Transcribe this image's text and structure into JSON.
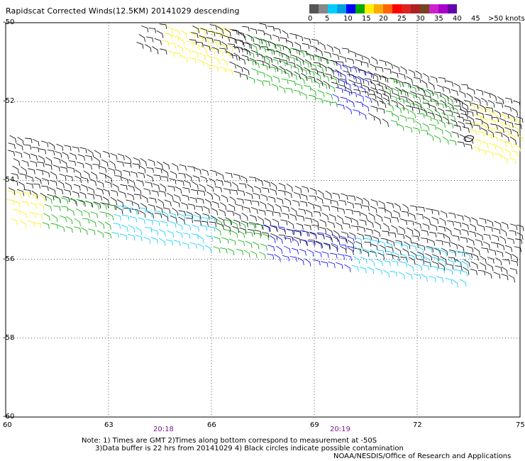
{
  "title": "Rapidscat Corrected Winds(12.5KM) 20141029 descending",
  "legend": {
    "colors": [
      "#555555",
      "#888888",
      "#00ccff",
      "#00a0e0",
      "#0000ff",
      "#00aa00",
      "#ffee00",
      "#ffaa00",
      "#ff6600",
      "#ff0000",
      "#dd2222",
      "#aa2222",
      "#774422",
      "#cc22cc",
      "#aa00cc",
      "#6600aa"
    ],
    "labels": [
      "0",
      "5",
      "10",
      "15",
      "20",
      "25",
      "30",
      "35",
      "40",
      "45",
      ">50 knots"
    ]
  },
  "axes": {
    "x_ticks": [
      "60",
      "63",
      "66",
      "69",
      "72",
      "75"
    ],
    "y_ticks": [
      "-50",
      "-52",
      "-54",
      "-56",
      "-58",
      "-60"
    ]
  },
  "times": {
    "t1": "20:18",
    "t2": "20:19"
  },
  "notes": "Note: 1) Times are GMT 2)Times along bottom correspond to measurement at -50S\n      3)Data buffer is 22 hrs from 20141029 4) Black circles indicate possible contamination",
  "credit": "NOAA/NESDIS/Office of Research and Applications",
  "map_data": {
    "lon_range": [
      60,
      75
    ],
    "lat_range": [
      -60,
      -50
    ],
    "swaths": [
      {
        "start": [
          64.0,
          -50.0
        ],
        "end": [
          75.0,
          -53.0
        ],
        "width_deg": 1.0,
        "color_zones": [
          {
            "from": 64.5,
            "to": 66.5,
            "color": "#ffee00"
          },
          {
            "from": 67,
            "to": 69.5,
            "color": "#00aa00"
          },
          {
            "from": 69,
            "to": 70.5,
            "color": "#0000ff"
          },
          {
            "from": 71,
            "to": 73,
            "color": "#00aa00"
          },
          {
            "from": 73.5,
            "to": 75,
            "color": "#ffee00"
          }
        ]
      },
      {
        "start": [
          65.5,
          -50.0
        ],
        "end": [
          75.0,
          -52.5
        ],
        "width_deg": 0.9,
        "color_zones": []
      },
      {
        "start": [
          60.0,
          -53.5
        ],
        "end": [
          75.0,
          -55.8
        ],
        "width_deg": 1.3,
        "color_zones": []
      },
      {
        "start": [
          60.0,
          -54.6
        ],
        "end": [
          73.5,
          -56.2
        ],
        "width_deg": 0.7,
        "color_zones": [
          {
            "from": 60,
            "to": 61,
            "color": "#ffee00"
          },
          {
            "from": 61,
            "to": 63,
            "color": "#00aa00"
          },
          {
            "from": 63,
            "to": 66,
            "color": "#00ccff"
          },
          {
            "from": 66,
            "to": 67.5,
            "color": "#00aa00"
          },
          {
            "from": 67.5,
            "to": 70,
            "color": "#0000ff"
          },
          {
            "from": 70,
            "to": 73.5,
            "color": "#00ccff"
          }
        ]
      }
    ]
  }
}
